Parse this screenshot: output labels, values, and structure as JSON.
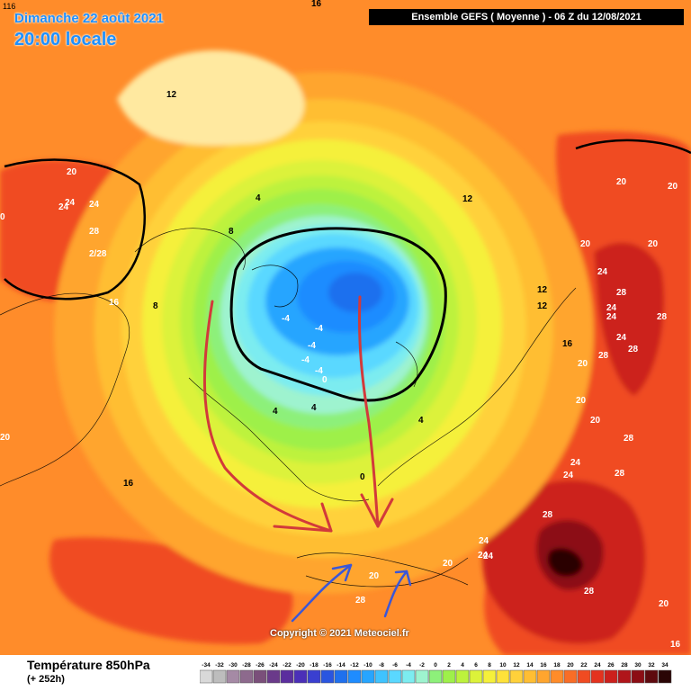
{
  "header": {
    "corner_value": "116",
    "date": "Dimanche 22 août 2021",
    "time": "20:00 locale",
    "run_info": "Ensemble GEFS  ( Moyenne )  -  06 Z du 12/08/2021"
  },
  "footer": {
    "variable": "Température 850hPa",
    "lead_time": "(+ 252h)",
    "copyright": "Copyright © 2021 Meteociel.fr"
  },
  "scale": {
    "values": [
      "-34",
      "-32",
      "-30",
      "-28",
      "-26",
      "-24",
      "-22",
      "-20",
      "-18",
      "-16",
      "-14",
      "-12",
      "-10",
      "-8",
      "-6",
      "-4",
      "-2",
      "0",
      "2",
      "4",
      "6",
      "8",
      "10",
      "12",
      "14",
      "16",
      "18",
      "20",
      "22",
      "24",
      "26",
      "28",
      "30",
      "32",
      "34"
    ],
    "colors": [
      "#d9d9d9",
      "#bdbdbd",
      "#a58aa5",
      "#8d6a8d",
      "#7a4f7a",
      "#6a3a8a",
      "#5b2e9e",
      "#4b2fb8",
      "#3a3fd0",
      "#2a55e0",
      "#1f70ee",
      "#1e8cff",
      "#27a5ff",
      "#3fc3ff",
      "#5ad8ff",
      "#7cecf0",
      "#9ef3cf",
      "#8df07a",
      "#9ef04a",
      "#bdf23c",
      "#dcf23a",
      "#f5f03a",
      "#ffe23a",
      "#ffd13a",
      "#ffbe33",
      "#ffa52e",
      "#ff8c2a",
      "#f96d26",
      "#f04b22",
      "#e4321e",
      "#cc201c",
      "#b0151a",
      "#8c0d14",
      "#5e0a0e",
      "#2a0505"
    ]
  },
  "map_labels": [
    {
      "text": "16"
    },
    {
      "text": "12"
    },
    {
      "text": "20"
    },
    {
      "text": "24"
    },
    {
      "text": "24"
    },
    {
      "text": "28"
    },
    {
      "text": "2/28"
    },
    {
      "text": "0"
    },
    {
      "text": "16"
    },
    {
      "text": "8"
    },
    {
      "text": "8"
    },
    {
      "text": "4"
    },
    {
      "text": "-4"
    },
    {
      "text": "-4"
    },
    {
      "text": "-4"
    },
    {
      "text": "-4"
    },
    {
      "text": "-4"
    },
    {
      "text": "0"
    },
    {
      "text": "4"
    },
    {
      "text": "4"
    },
    {
      "text": "0"
    },
    {
      "text": "4"
    },
    {
      "text": "12"
    },
    {
      "text": "12"
    },
    {
      "text": "12"
    },
    {
      "text": "16"
    },
    {
      "text": "20"
    },
    {
      "text": "20"
    },
    {
      "text": "20"
    },
    {
      "text": "20"
    },
    {
      "text": "20"
    },
    {
      "text": "24"
    },
    {
      "text": "24"
    },
    {
      "text": "24"
    },
    {
      "text": "28"
    },
    {
      "text": "28"
    },
    {
      "text": "28"
    },
    {
      "text": "24"
    },
    {
      "text": "28"
    },
    {
      "text": "20"
    },
    {
      "text": "20"
    },
    {
      "text": "24"
    },
    {
      "text": "28"
    },
    {
      "text": "24"
    },
    {
      "text": "28"
    },
    {
      "text": "28"
    },
    {
      "text": "24"
    },
    {
      "text": "24"
    },
    {
      "text": "20"
    },
    {
      "text": "20"
    },
    {
      "text": "28"
    },
    {
      "text": "28"
    },
    {
      "text": "20"
    },
    {
      "text": "16"
    },
    {
      "text": "16"
    },
    {
      "text": "20"
    },
    {
      "text": "24"
    },
    {
      "text": "24"
    }
  ],
  "colors": {
    "title_blue": "#1e90ff",
    "trough_arrow_red": "#d23a3a",
    "ridge_arrow_blue": "#3a57d8"
  }
}
